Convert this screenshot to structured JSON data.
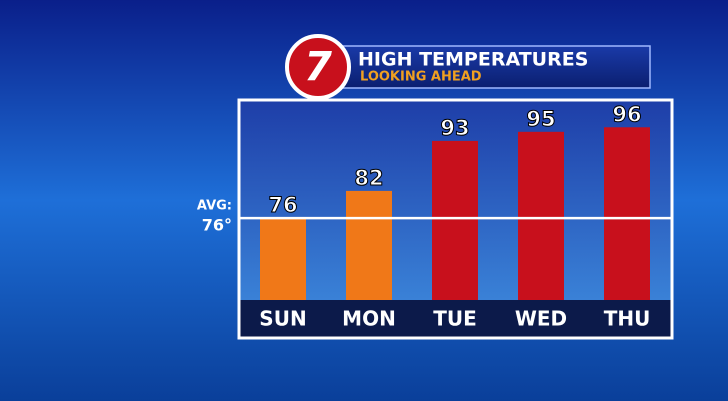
{
  "chart_data": {
    "type": "bar",
    "logo_text": "7",
    "title": "HIGH TEMPERATURES",
    "subtitle": "LOOKING AHEAD",
    "categories": [
      "SUN",
      "MON",
      "TUE",
      "WED",
      "THU"
    ],
    "values": [
      76,
      82,
      93,
      95,
      96
    ],
    "colors": [
      "#f07818",
      "#f07818",
      "#c8101c",
      "#c8101c",
      "#c8101c"
    ],
    "ylim": [
      58,
      102
    ],
    "reference_line": {
      "label": "AVG:",
      "value": 76,
      "value_label": "76°"
    }
  }
}
